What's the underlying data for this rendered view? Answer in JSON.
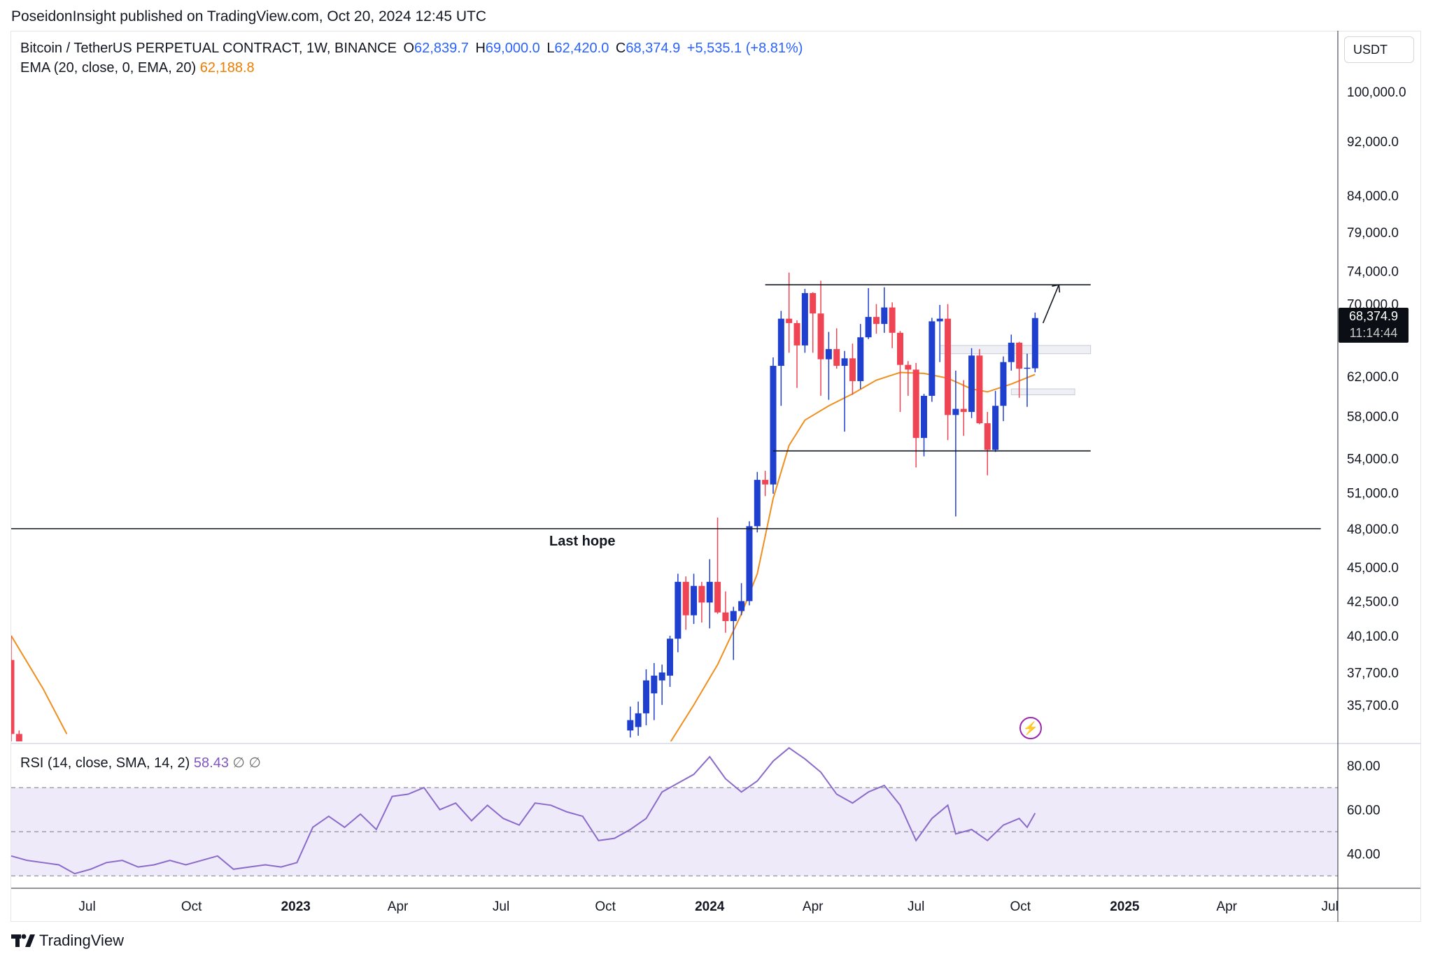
{
  "publish_line": "PoseidonInsight published on TradingView.com, Oct 20, 2024 12:45 UTC",
  "legend": {
    "symbol": "Bitcoin / TetherUS PERPETUAL CONTRACT, 1W, BINANCE",
    "open_label": "O",
    "open": "62,839.7",
    "high_label": "H",
    "high": "69,000.0",
    "low_label": "L",
    "low": "62,420.0",
    "close_label": "C",
    "close": "68,374.9",
    "change": "+5,535.1 (+8.81%)"
  },
  "ema_legend": {
    "label": "EMA (20, close, 0, EMA, 20)",
    "value": "62,188.8"
  },
  "rsi_legend": {
    "label": "RSI (14, close, SMA, 14, 2)",
    "value": "58.43",
    "icon1": "∅",
    "icon2": "∅"
  },
  "currency": "USDT",
  "price_tag": {
    "price": "68,374.9",
    "countdown": "11:14:44"
  },
  "footer_brand": "TradingView",
  "colors": {
    "up": "#1f3fcf",
    "down": "#ef4453",
    "ema": "#ef8f1f",
    "rsi": "#8a6bc9",
    "rsi_band": "#efeaf9"
  },
  "chart_data": [
    {
      "type": "candlestick",
      "title": "Bitcoin / TetherUS PERPETUAL CONTRACT, 1W, BINANCE",
      "yscale": "log",
      "ylim": [
        33500,
        110000
      ],
      "y_ticks": [
        {
          "value": 100000,
          "label": "100,000.0"
        },
        {
          "value": 92000,
          "label": "92,000.0"
        },
        {
          "value": 84000,
          "label": "84,000.0"
        },
        {
          "value": 79000,
          "label": "79,000.0"
        },
        {
          "value": 74000,
          "label": "74,000.0"
        },
        {
          "value": 70000,
          "label": "70,000.0"
        },
        {
          "value": 62000,
          "label": "62,000.0"
        },
        {
          "value": 58000,
          "label": "58,000.0"
        },
        {
          "value": 54000,
          "label": "54,000.0"
        },
        {
          "value": 51000,
          "label": "51,000.0"
        },
        {
          "value": 48000,
          "label": "48,000.0"
        },
        {
          "value": 45000,
          "label": "45,000.0"
        },
        {
          "value": 42500,
          "label": "42,500.0"
        },
        {
          "value": 40100,
          "label": "40,100.0"
        },
        {
          "value": 37700,
          "label": "37,700.0"
        },
        {
          "value": 35700,
          "label": "35,700.0"
        }
      ],
      "x_range": [
        "2022-04-25",
        "2025-06-30"
      ],
      "x_ticks": [
        {
          "date": "2022-07-01",
          "label": "Jul",
          "bold": false
        },
        {
          "date": "2022-10-01",
          "label": "Oct",
          "bold": false
        },
        {
          "date": "2023-01-01",
          "label": "2023",
          "bold": true
        },
        {
          "date": "2023-04-01",
          "label": "Apr",
          "bold": false
        },
        {
          "date": "2023-07-01",
          "label": "Jul",
          "bold": false
        },
        {
          "date": "2023-10-01",
          "label": "Oct",
          "bold": false
        },
        {
          "date": "2024-01-01",
          "label": "2024",
          "bold": true
        },
        {
          "date": "2024-04-01",
          "label": "Apr",
          "bold": false
        },
        {
          "date": "2024-07-01",
          "label": "Jul",
          "bold": false
        },
        {
          "date": "2024-10-01",
          "label": "Oct",
          "bold": false
        },
        {
          "date": "2025-01-01",
          "label": "2025",
          "bold": true
        },
        {
          "date": "2025-04-01",
          "label": "Apr",
          "bold": false
        },
        {
          "date": "2025-07-01",
          "label": "Jul",
          "bold": false
        }
      ],
      "candles": [
        {
          "date": "2022-04-25",
          "o": 38500,
          "h": 40100,
          "l": 33000,
          "c": 34000
        },
        {
          "date": "2022-05-02",
          "o": 34000,
          "h": 34200,
          "l": 33000,
          "c": 33300
        },
        {
          "date": "2023-10-23",
          "o": 34200,
          "h": 35600,
          "l": 33800,
          "c": 34800
        },
        {
          "date": "2023-10-30",
          "o": 34400,
          "h": 35900,
          "l": 33900,
          "c": 35200
        },
        {
          "date": "2023-11-06",
          "o": 35200,
          "h": 37900,
          "l": 34500,
          "c": 37200
        },
        {
          "date": "2023-11-13",
          "o": 36400,
          "h": 38300,
          "l": 34800,
          "c": 37500
        },
        {
          "date": "2023-11-20",
          "o": 37200,
          "h": 38200,
          "l": 35700,
          "c": 37700
        },
        {
          "date": "2023-11-27",
          "o": 37500,
          "h": 40100,
          "l": 36800,
          "c": 39900
        },
        {
          "date": "2023-12-04",
          "o": 39900,
          "h": 44500,
          "l": 39000,
          "c": 43900
        },
        {
          "date": "2023-12-11",
          "o": 43900,
          "h": 44300,
          "l": 40500,
          "c": 41500
        },
        {
          "date": "2023-12-18",
          "o": 41500,
          "h": 44500,
          "l": 40900,
          "c": 43600
        },
        {
          "date": "2023-12-25",
          "o": 43600,
          "h": 43900,
          "l": 41000,
          "c": 42400
        },
        {
          "date": "2024-01-01",
          "o": 42400,
          "h": 45600,
          "l": 40600,
          "c": 43900
        },
        {
          "date": "2024-01-08",
          "o": 43900,
          "h": 48900,
          "l": 41600,
          "c": 41700
        },
        {
          "date": "2024-01-15",
          "o": 41700,
          "h": 43200,
          "l": 40300,
          "c": 41100
        },
        {
          "date": "2024-01-22",
          "o": 41100,
          "h": 42100,
          "l": 38500,
          "c": 41800
        },
        {
          "date": "2024-01-29",
          "o": 41800,
          "h": 43800,
          "l": 41500,
          "c": 42500
        },
        {
          "date": "2024-02-05",
          "o": 42500,
          "h": 48600,
          "l": 42200,
          "c": 48200
        },
        {
          "date": "2024-02-12",
          "o": 48200,
          "h": 52800,
          "l": 47700,
          "c": 52100
        },
        {
          "date": "2024-02-19",
          "o": 52100,
          "h": 52900,
          "l": 50700,
          "c": 51700
        },
        {
          "date": "2024-02-26",
          "o": 51700,
          "h": 64000,
          "l": 50900,
          "c": 63100
        },
        {
          "date": "2024-03-04",
          "o": 63100,
          "h": 69200,
          "l": 59000,
          "c": 68300
        },
        {
          "date": "2024-03-11",
          "o": 68300,
          "h": 73800,
          "l": 64500,
          "c": 67800
        },
        {
          "date": "2024-03-18",
          "o": 67800,
          "h": 68100,
          "l": 60800,
          "c": 65300
        },
        {
          "date": "2024-03-25",
          "o": 65300,
          "h": 71800,
          "l": 64500,
          "c": 71300
        },
        {
          "date": "2024-04-01",
          "o": 71300,
          "h": 71400,
          "l": 64500,
          "c": 68900
        },
        {
          "date": "2024-04-08",
          "o": 68900,
          "h": 72800,
          "l": 60000,
          "c": 63800
        },
        {
          "date": "2024-04-15",
          "o": 63800,
          "h": 66800,
          "l": 59600,
          "c": 64900
        },
        {
          "date": "2024-04-22",
          "o": 64900,
          "h": 67200,
          "l": 62800,
          "c": 63100
        },
        {
          "date": "2024-04-29",
          "o": 63100,
          "h": 64700,
          "l": 56500,
          "c": 63900
        },
        {
          "date": "2024-05-06",
          "o": 63900,
          "h": 65500,
          "l": 60100,
          "c": 61500
        },
        {
          "date": "2024-05-13",
          "o": 61500,
          "h": 67700,
          "l": 60700,
          "c": 66200
        },
        {
          "date": "2024-05-20",
          "o": 66200,
          "h": 71900,
          "l": 66000,
          "c": 68500
        },
        {
          "date": "2024-05-27",
          "o": 68500,
          "h": 70000,
          "l": 66600,
          "c": 67700
        },
        {
          "date": "2024-06-03",
          "o": 67700,
          "h": 72000,
          "l": 66700,
          "c": 69600
        },
        {
          "date": "2024-06-10",
          "o": 69600,
          "h": 70200,
          "l": 65000,
          "c": 66700
        },
        {
          "date": "2024-06-17",
          "o": 66700,
          "h": 66900,
          "l": 58400,
          "c": 63200
        },
        {
          "date": "2024-06-24",
          "o": 63200,
          "h": 63600,
          "l": 60000,
          "c": 62700
        },
        {
          "date": "2024-07-01",
          "o": 62700,
          "h": 63400,
          "l": 53200,
          "c": 55900
        },
        {
          "date": "2024-07-08",
          "o": 55900,
          "h": 60200,
          "l": 54200,
          "c": 60000
        },
        {
          "date": "2024-07-15",
          "o": 60000,
          "h": 68400,
          "l": 59400,
          "c": 68000
        },
        {
          "date": "2024-07-22",
          "o": 68000,
          "h": 69900,
          "l": 63500,
          "c": 68300
        },
        {
          "date": "2024-07-29",
          "o": 68300,
          "h": 70000,
          "l": 55700,
          "c": 58100
        },
        {
          "date": "2024-08-05",
          "o": 58100,
          "h": 62600,
          "l": 49000,
          "c": 58700
        },
        {
          "date": "2024-08-12",
          "o": 58700,
          "h": 61600,
          "l": 56100,
          "c": 58400
        },
        {
          "date": "2024-08-19",
          "o": 58400,
          "h": 65000,
          "l": 57800,
          "c": 64200
        },
        {
          "date": "2024-08-26",
          "o": 64200,
          "h": 64900,
          "l": 57200,
          "c": 57300
        },
        {
          "date": "2024-09-02",
          "o": 57300,
          "h": 58400,
          "l": 52500,
          "c": 54800
        },
        {
          "date": "2024-09-09",
          "o": 54800,
          "h": 60500,
          "l": 54600,
          "c": 59000
        },
        {
          "date": "2024-09-16",
          "o": 59000,
          "h": 64100,
          "l": 57500,
          "c": 63500
        },
        {
          "date": "2024-09-23",
          "o": 63500,
          "h": 66500,
          "l": 62600,
          "c": 65600
        },
        {
          "date": "2024-09-30",
          "o": 65600,
          "h": 65700,
          "l": 59800,
          "c": 62800
        },
        {
          "date": "2024-10-07",
          "o": 62800,
          "h": 64400,
          "l": 58900,
          "c": 62900
        },
        {
          "date": "2024-10-14",
          "o": 62839.7,
          "h": 69000,
          "l": 62420,
          "c": 68374.9
        }
      ],
      "ema_series": [
        [
          "2022-04-25",
          40100
        ],
        [
          "2022-05-23",
          36700
        ],
        [
          "2022-06-13",
          34000
        ],
        [
          "2023-11-27",
          33500
        ],
        [
          "2023-12-18",
          35700
        ],
        [
          "2024-01-08",
          38200
        ],
        [
          "2024-01-29",
          41600
        ],
        [
          "2024-02-12",
          44500
        ],
        [
          "2024-02-26",
          50500
        ],
        [
          "2024-03-11",
          55200
        ],
        [
          "2024-03-25",
          57600
        ],
        [
          "2024-04-15",
          59000
        ],
        [
          "2024-05-06",
          60200
        ],
        [
          "2024-05-27",
          61600
        ],
        [
          "2024-06-17",
          62400
        ],
        [
          "2024-07-08",
          62300
        ],
        [
          "2024-07-29",
          61800
        ],
        [
          "2024-08-19",
          60700
        ],
        [
          "2024-09-02",
          60400
        ],
        [
          "2024-09-23",
          61200
        ],
        [
          "2024-10-14",
          62188.8
        ]
      ],
      "lines": [
        {
          "kind": "horizontal",
          "y": 72300,
          "from": "2024-02-19",
          "to": "2024-12-02"
        },
        {
          "kind": "horizontal",
          "y": 54700,
          "from": "2024-02-26",
          "to": "2024-12-02"
        },
        {
          "kind": "horizontal",
          "y": 48000,
          "from": "2022-04-25",
          "to": "2025-06-23",
          "label": "Last hope"
        },
        {
          "kind": "arrow",
          "from": [
            "2024-10-21",
            67800
          ],
          "to": [
            "2024-11-04",
            72300
          ]
        }
      ],
      "zones": [
        {
          "from": "2024-07-22",
          "to": "2024-12-02",
          "y_low": 64400,
          "y_high": 65300
        },
        {
          "from": "2024-09-23",
          "to": "2024-11-18",
          "y_low": 60100,
          "y_high": 60700
        }
      ]
    },
    {
      "type": "line",
      "title": "RSI (14, close, SMA, 14, 2)",
      "ylim": [
        25,
        90
      ],
      "y_ticks": [
        {
          "value": 80,
          "label": "80.00"
        },
        {
          "value": 60,
          "label": "60.00"
        },
        {
          "value": 40,
          "label": "40.00"
        }
      ],
      "bands": [
        70,
        50,
        30
      ],
      "series": [
        {
          "name": "RSI",
          "points": [
            [
              "2022-04-25",
              39
            ],
            [
              "2022-05-09",
              37
            ],
            [
              "2022-05-23",
              36
            ],
            [
              "2022-06-06",
              35
            ],
            [
              "2022-06-20",
              31
            ],
            [
              "2022-07-04",
              33
            ],
            [
              "2022-07-18",
              36
            ],
            [
              "2022-08-01",
              37
            ],
            [
              "2022-08-15",
              34
            ],
            [
              "2022-08-29",
              35
            ],
            [
              "2022-09-12",
              37
            ],
            [
              "2022-09-26",
              35
            ],
            [
              "2022-10-10",
              37
            ],
            [
              "2022-10-24",
              39
            ],
            [
              "2022-11-07",
              33
            ],
            [
              "2022-11-21",
              34
            ],
            [
              "2022-12-05",
              35
            ],
            [
              "2022-12-19",
              34
            ],
            [
              "2023-01-02",
              36
            ],
            [
              "2023-01-16",
              52
            ],
            [
              "2023-01-30",
              57
            ],
            [
              "2023-02-13",
              52
            ],
            [
              "2023-02-27",
              58
            ],
            [
              "2023-03-13",
              51
            ],
            [
              "2023-03-27",
              66
            ],
            [
              "2023-04-10",
              67
            ],
            [
              "2023-04-24",
              70
            ],
            [
              "2023-05-08",
              60
            ],
            [
              "2023-05-22",
              63
            ],
            [
              "2023-06-05",
              55
            ],
            [
              "2023-06-19",
              62
            ],
            [
              "2023-07-03",
              56
            ],
            [
              "2023-07-17",
              53
            ],
            [
              "2023-07-31",
              63
            ],
            [
              "2023-08-14",
              62
            ],
            [
              "2023-08-28",
              59
            ],
            [
              "2023-09-11",
              57
            ],
            [
              "2023-09-25",
              46
            ],
            [
              "2023-10-09",
              47
            ],
            [
              "2023-10-23",
              51
            ],
            [
              "2023-11-06",
              56
            ],
            [
              "2023-11-20",
              68
            ],
            [
              "2023-12-04",
              72
            ],
            [
              "2023-12-18",
              76
            ],
            [
              "2024-01-01",
              84
            ],
            [
              "2024-01-15",
              74
            ],
            [
              "2024-01-29",
              68
            ],
            [
              "2024-02-12",
              73
            ],
            [
              "2024-02-26",
              82
            ],
            [
              "2024-03-11",
              88
            ],
            [
              "2024-03-25",
              83
            ],
            [
              "2024-04-08",
              77
            ],
            [
              "2024-04-22",
              67
            ],
            [
              "2024-05-06",
              63
            ],
            [
              "2024-05-20",
              68
            ],
            [
              "2024-06-03",
              71
            ],
            [
              "2024-06-17",
              62
            ],
            [
              "2024-07-01",
              46
            ],
            [
              "2024-07-15",
              56
            ],
            [
              "2024-07-29",
              62
            ],
            [
              "2024-08-05",
              49
            ],
            [
              "2024-08-19",
              51
            ],
            [
              "2024-09-02",
              46
            ],
            [
              "2024-09-16",
              53
            ],
            [
              "2024-09-30",
              56
            ],
            [
              "2024-10-07",
              52
            ],
            [
              "2024-10-14",
              58.43
            ]
          ]
        }
      ]
    }
  ]
}
